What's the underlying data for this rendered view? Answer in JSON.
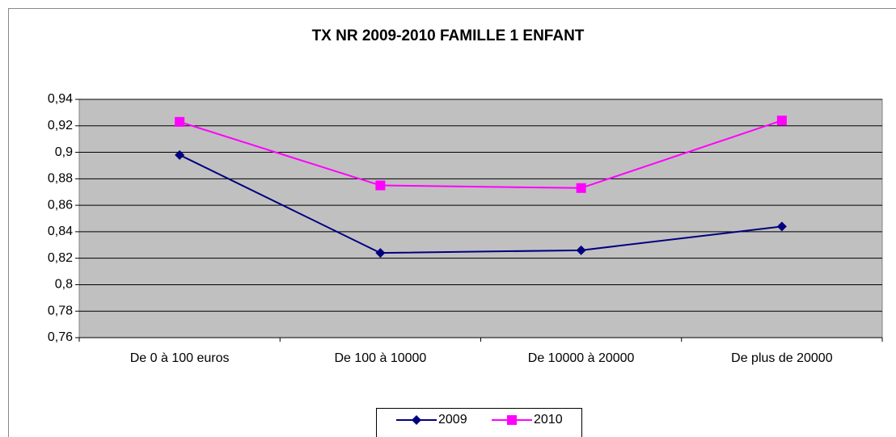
{
  "chart_data": {
    "type": "line",
    "title": "TX NR 2009-2010 FAMILLE 1 ENFANT",
    "categories": [
      "De 0 à 100 euros",
      "De 100 à 10000",
      "De 10000 à 20000",
      "De plus de 20000"
    ],
    "series": [
      {
        "name": "2009",
        "color": "#000080",
        "marker": "diamond",
        "values": [
          0.898,
          0.824,
          0.826,
          0.844
        ]
      },
      {
        "name": "2010",
        "color": "#ff00ff",
        "marker": "square",
        "values": [
          0.923,
          0.875,
          0.873,
          0.924
        ]
      }
    ],
    "ylim": [
      0.76,
      0.94
    ],
    "yticks": [
      {
        "value": 0.76,
        "label": "0,76"
      },
      {
        "value": 0.78,
        "label": "0,78"
      },
      {
        "value": 0.8,
        "label": "0,8"
      },
      {
        "value": 0.82,
        "label": "0,82"
      },
      {
        "value": 0.84,
        "label": "0,84"
      },
      {
        "value": 0.86,
        "label": "0,86"
      },
      {
        "value": 0.88,
        "label": "0,88"
      },
      {
        "value": 0.9,
        "label": "0,9"
      },
      {
        "value": 0.92,
        "label": "0,92"
      },
      {
        "value": 0.94,
        "label": "0,94"
      }
    ],
    "grid": true,
    "legend": "bottom"
  }
}
